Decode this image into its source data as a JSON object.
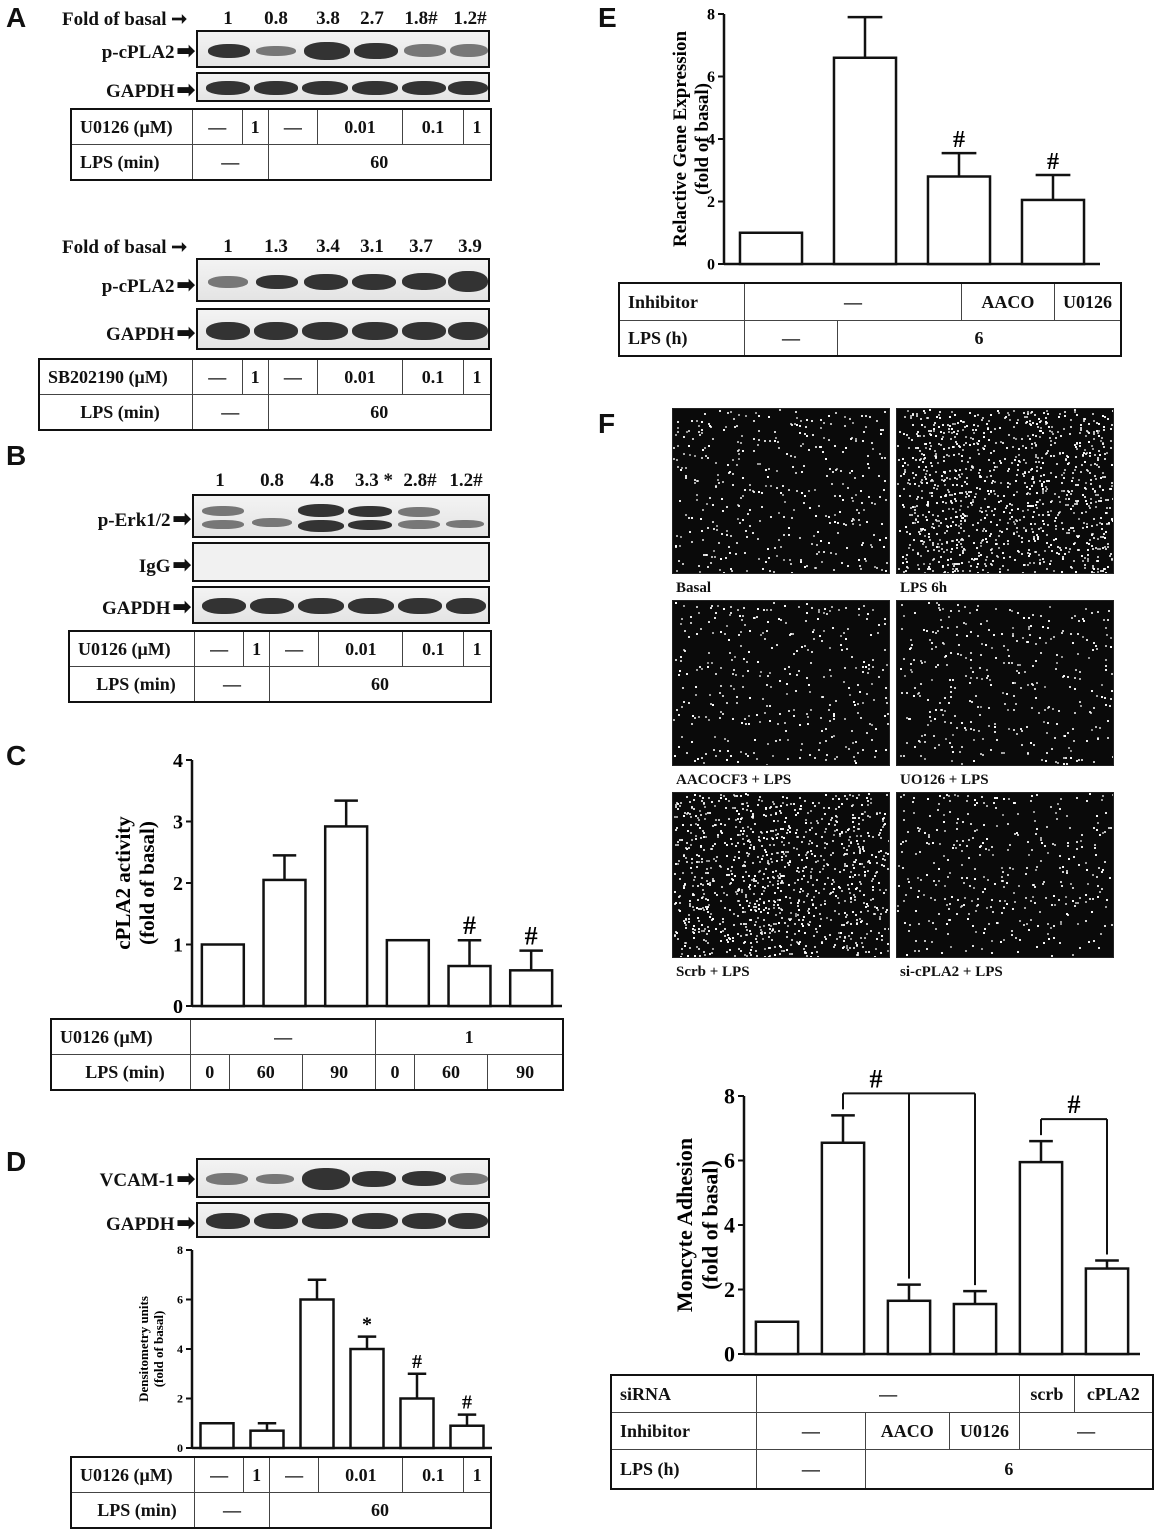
{
  "panel_labels": {
    "A": "A",
    "B": "B",
    "C": "C",
    "D": "D",
    "E": "E",
    "F": "F"
  },
  "panelA_top": {
    "fold_label": "Fold of basal",
    "fold_values": [
      "1",
      "0.8",
      "3.8",
      "2.7",
      "1.8#",
      "1.2#"
    ],
    "blots": [
      "p-cPLA2",
      "GAPDH"
    ],
    "conditions": {
      "inhibitor_label": "U0126 (μM)",
      "inhibitor_values": [
        "—",
        "1",
        "—",
        "0.01",
        "0.1",
        "1"
      ],
      "lps_label": "LPS (min)",
      "lps_values": [
        "—",
        "60"
      ]
    }
  },
  "panelA_bottom": {
    "fold_label": "Fold of basal",
    "fold_values": [
      "1",
      "1.3",
      "3.4",
      "3.1",
      "3.7",
      "3.9"
    ],
    "blots": [
      "p-cPLA2",
      "GAPDH"
    ],
    "conditions": {
      "inhibitor_label": "SB202190 (μM)",
      "inhibitor_values": [
        "—",
        "1",
        "—",
        "0.01",
        "0.1",
        "1"
      ],
      "lps_label": "LPS (min)",
      "lps_values": [
        "—",
        "60"
      ]
    }
  },
  "panelB": {
    "fold_values": [
      "1",
      "0.8",
      "4.8",
      "3.3 *",
      "2.8#",
      "1.2#"
    ],
    "blots": [
      "p-Erk1/2",
      "IgG",
      "GAPDH"
    ],
    "conditions": {
      "inhibitor_label": "U0126 (μM)",
      "inhibitor_values": [
        "—",
        "1",
        "—",
        "0.01",
        "0.1",
        "1"
      ],
      "lps_label": "LPS (min)",
      "lps_values": [
        "—",
        "60"
      ]
    }
  },
  "panelD": {
    "blots": [
      "VCAM-1",
      "GAPDH"
    ],
    "conditions": {
      "inhibitor_label": "U0126 (μM)",
      "inhibitor_values": [
        "—",
        "1",
        "—",
        "0.01",
        "0.1",
        "1"
      ],
      "lps_label": "LPS (min)",
      "lps_values": [
        "—",
        "60"
      ]
    }
  },
  "panelC_table": {
    "inhibitor_label": "U0126 (μM)",
    "inhibitor_values": [
      "—",
      "1"
    ],
    "lps_label": "LPS (min)",
    "lps_values": [
      "0",
      "60",
      "90",
      "0",
      "60",
      "90"
    ]
  },
  "panelE_table": {
    "inhibitor_label": "Inhibitor",
    "inhibitor_values": [
      "—",
      "AACO",
      "U0126"
    ],
    "lps_label": "LPS (h)",
    "lps_values": [
      "—",
      "6"
    ]
  },
  "panelF_images": [
    {
      "caption": "Basal",
      "density": 0.35
    },
    {
      "caption": "LPS 6h",
      "density": 1.0
    },
    {
      "caption": "AACOCF3 + LPS",
      "density": 0.3
    },
    {
      "caption": "UO126 + LPS",
      "density": 0.32
    },
    {
      "caption": "Scrb + LPS",
      "density": 0.95
    },
    {
      "caption": "si-cPLA2 + LPS",
      "density": 0.33
    }
  ],
  "panelF_table": {
    "sirna_label": "siRNA",
    "sirna_values": [
      "—",
      "scrb",
      "cPLA2"
    ],
    "inhibitor_label": "Inhibitor",
    "inhibitor_values": [
      "—",
      "AACO",
      "U0126",
      "—"
    ],
    "lps_label": "LPS (h)",
    "lps_values": [
      "—",
      "6"
    ]
  },
  "chart_data": [
    {
      "id": "C",
      "type": "bar",
      "ylabel": "cPLA2 activity (fold of basal)",
      "ylim": [
        0,
        4
      ],
      "yticks": [
        0,
        1,
        2,
        3,
        4
      ],
      "values": [
        1.0,
        2.05,
        2.92,
        1.07,
        0.65,
        0.58
      ],
      "errors": [
        0,
        0.4,
        0.42,
        0,
        0.42,
        0.32
      ],
      "annotations": [
        "",
        "",
        "",
        "",
        "#",
        "#"
      ]
    },
    {
      "id": "D",
      "type": "bar",
      "ylabel": "Densitometry units (fold of basal)",
      "ylim": [
        0,
        8
      ],
      "yticks": [
        0,
        2,
        4,
        6,
        8
      ],
      "values": [
        1.0,
        0.7,
        6.0,
        4.0,
        2.0,
        0.9
      ],
      "errors": [
        0,
        0.3,
        0.8,
        0.5,
        1.0,
        0.45
      ],
      "annotations": [
        "",
        "",
        "",
        "*",
        "#",
        "#"
      ]
    },
    {
      "id": "E",
      "type": "bar",
      "ylabel": "Relactive Gene Expression (fold of basal)",
      "ylim": [
        0,
        8
      ],
      "yticks": [
        0,
        2,
        4,
        6,
        8
      ],
      "values": [
        1.0,
        6.6,
        2.8,
        2.05
      ],
      "errors": [
        0,
        1.3,
        0.75,
        0.8
      ],
      "annotations": [
        "",
        "",
        "#",
        "#"
      ]
    },
    {
      "id": "F",
      "type": "bar",
      "ylabel": "Moncyte Adhesion (fold of basal)",
      "ylim": [
        0,
        8
      ],
      "yticks": [
        0,
        2,
        4,
        6,
        8
      ],
      "values": [
        1.0,
        6.55,
        1.65,
        1.55,
        5.95,
        2.65
      ],
      "errors": [
        0,
        0.85,
        0.5,
        0.4,
        0.65,
        0.25
      ],
      "annotations": [
        "",
        "",
        "",
        "",
        "",
        ""
      ],
      "brackets": [
        {
          "from": 1,
          "to": [
            2,
            3
          ],
          "label": "#"
        },
        {
          "from": 4,
          "to": [
            5
          ],
          "label": "#"
        }
      ]
    }
  ]
}
